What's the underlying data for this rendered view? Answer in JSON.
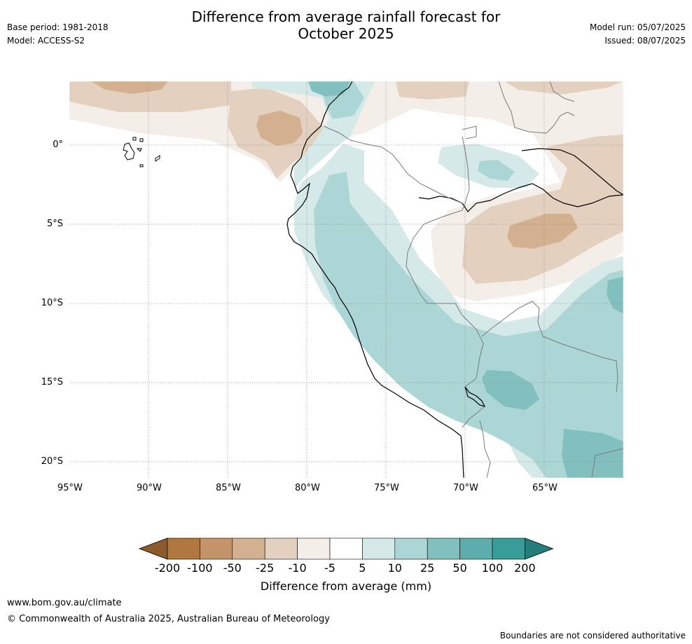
{
  "header": {
    "title_line1": "Difference from average rainfall forecast for",
    "title_line2": "October 2025",
    "base_period": "Base period: 1981-2018",
    "model": "Model: ACCESS-S2",
    "model_run": "Model run: 05/07/2025",
    "issued": "Issued: 08/07/2025"
  },
  "map": {
    "extent": {
      "lon": [
        -95,
        -60
      ],
      "lat": [
        -21,
        4
      ]
    },
    "lat_ticks": [
      {
        "value": 0,
        "label": "0°"
      },
      {
        "value": -5,
        "label": "5°S"
      },
      {
        "value": -10,
        "label": "10°S"
      },
      {
        "value": -15,
        "label": "15°S"
      },
      {
        "value": -20,
        "label": "20°S"
      }
    ],
    "lon_ticks": [
      {
        "value": -95,
        "label": "95°W"
      },
      {
        "value": -90,
        "label": "90°W"
      },
      {
        "value": -85,
        "label": "85°W"
      },
      {
        "value": -80,
        "label": "80°W"
      },
      {
        "value": -75,
        "label": "75°W"
      },
      {
        "value": -70,
        "label": "70°W"
      },
      {
        "value": -65,
        "label": "65°W"
      }
    ],
    "gridlines": "dotted"
  },
  "colorbar": {
    "label": "Difference from average (mm)",
    "ticks": [
      "-200",
      "-100",
      "-50",
      "-25",
      "-10",
      "-5",
      "5",
      "10",
      "25",
      "50",
      "100",
      "200"
    ],
    "colors": [
      "#8c5a2b",
      "#b07840",
      "#c39468",
      "#d3b190",
      "#e3d0bf",
      "#f3eee8",
      "#ffffff",
      "#d5e9e8",
      "#acd6d5",
      "#82c0bf",
      "#5dadac",
      "#389c98",
      "#237d7a"
    ]
  },
  "footer": {
    "website": "www.bom.gov.au/climate",
    "copyright": "© Commonwealth of Australia 2025, Australian Bureau of Meteorology",
    "disclaimer": "Boundaries are not considered authoritative"
  }
}
